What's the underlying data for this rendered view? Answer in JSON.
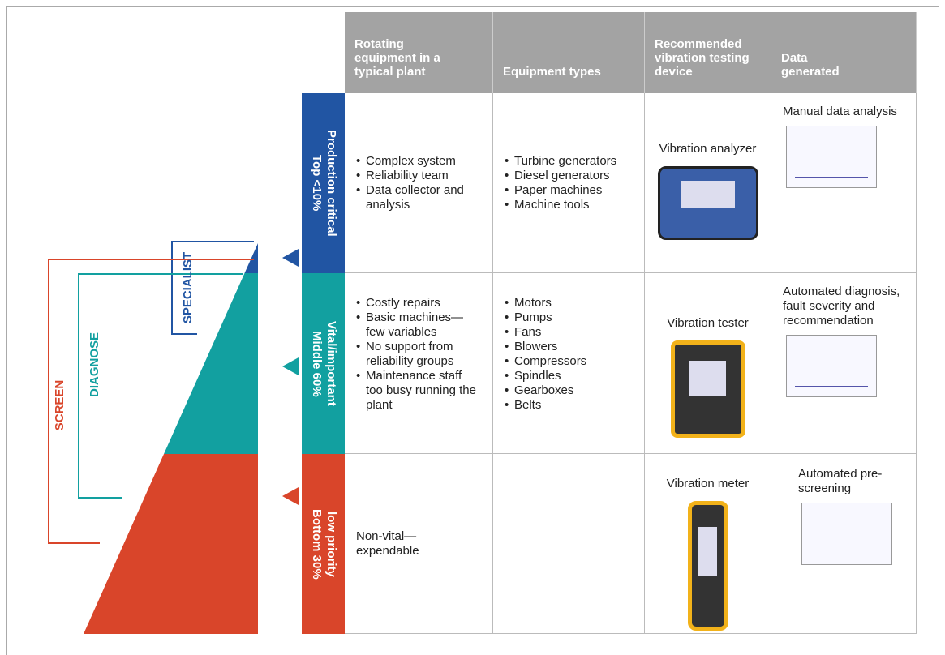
{
  "header": {
    "columns": [
      "Rotating equipment in a typical plant",
      "Equipment types",
      "Recommended vibration testing device",
      "Data generated"
    ]
  },
  "pyramid": {
    "specialist": "SPECIALIST",
    "diagnose": "DIAGNOSE",
    "screen": "SCREEN"
  },
  "rows": [
    {
      "label": [
        "Top <10%",
        "Production critical"
      ],
      "plant": [
        "Complex system",
        "Reliability team",
        "Data collector and analysis"
      ],
      "types": [
        "Turbine generators",
        "Diesel generators",
        "Paper machines",
        "Machine tools"
      ],
      "device": "Vibration analyzer",
      "data": "Manual data analysis"
    },
    {
      "label": [
        "Middle 60%",
        "Vital/important"
      ],
      "plant": [
        "Costly repairs",
        "Basic machines—few variables",
        "No support from reliability groups",
        "Maintenance staff too busy running the plant"
      ],
      "types": [
        "Motors",
        "Pumps",
        "Fans",
        "Blowers",
        "Compressors",
        "Spindles",
        "Gearboxes",
        "Belts"
      ],
      "device": "Vibration tester",
      "data": "Automated diagnosis, fault severity and recommendation"
    },
    {
      "label": [
        "Bottom 30%",
        "low priority"
      ],
      "plant_note": "Non-vital—expendable",
      "device": "Vibration meter",
      "data": "Automated pre-screening"
    }
  ]
}
